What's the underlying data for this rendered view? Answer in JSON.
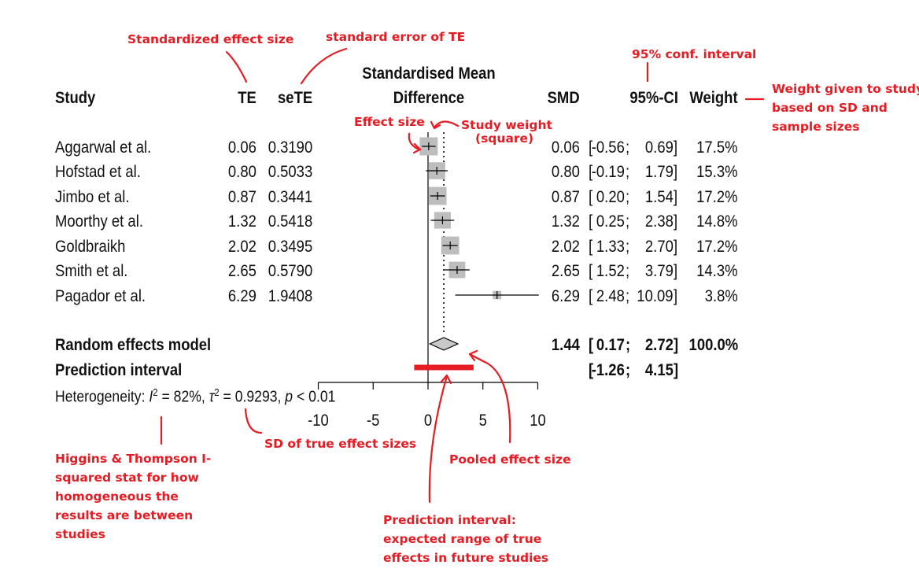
{
  "headers": {
    "study": "Study",
    "te": "TE",
    "sete": "seTE",
    "plot_line1": "Standardised Mean",
    "plot_line2": "Difference",
    "smd": "SMD",
    "ci": "95%-CI",
    "weight": "Weight"
  },
  "studies": [
    {
      "name": "Aggarwal et al.",
      "te": "0.06",
      "sete": "0.3190",
      "smd": "0.06",
      "ci_lo": "-0.56",
      "ci_hi": "0.69",
      "weight": "17.5%"
    },
    {
      "name": "Hofstad et al.",
      "te": "0.80",
      "sete": "0.5033",
      "smd": "0.80",
      "ci_lo": "-0.19",
      "ci_hi": "1.79",
      "weight": "15.3%"
    },
    {
      "name": "Jimbo et al.",
      "te": "0.87",
      "sete": "0.3441",
      "smd": "0.87",
      "ci_lo": "0.20",
      "ci_hi": "1.54",
      "weight": "17.2%"
    },
    {
      "name": "Moorthy et al.",
      "te": "1.32",
      "sete": "0.5418",
      "smd": "1.32",
      "ci_lo": "0.25",
      "ci_hi": "2.38",
      "weight": "14.8%"
    },
    {
      "name": "Goldbraikh",
      "te": "2.02",
      "sete": "0.3495",
      "smd": "2.02",
      "ci_lo": "1.33",
      "ci_hi": "2.70",
      "weight": "17.2%"
    },
    {
      "name": "Smith et al.",
      "te": "2.65",
      "sete": "0.5790",
      "smd": "2.65",
      "ci_lo": "1.52",
      "ci_hi": "3.79",
      "weight": "14.3%"
    },
    {
      "name": "Pagador et al.",
      "te": "6.29",
      "sete": "1.9408",
      "smd": "6.29",
      "ci_lo": "2.48",
      "ci_hi": "10.09",
      "weight": "3.8%"
    }
  ],
  "random_effects": {
    "label": "Random effects model",
    "smd": "1.44",
    "ci_lo": "0.17",
    "ci_hi": "2.72",
    "weight": "100.0%"
  },
  "prediction": {
    "label": "Prediction interval",
    "lo": "-1.26",
    "hi": "4.15"
  },
  "heterogeneity": {
    "label": "Heterogeneity: ",
    "i2_sym": "I",
    "i2_sup": "2",
    "i2_val": " = 82%, ",
    "tau_sym": "τ",
    "tau_sup": "2",
    "tau_val": " = 0.9293, ",
    "p_sym": "p",
    "p_val": " < 0.01"
  },
  "colors": {
    "annotation": "#e51c23",
    "square": "#bdbdbd",
    "diamond": "#c8c8c8",
    "prediction_bar": "#e51c23"
  },
  "chart_data": {
    "type": "forest",
    "xlim": [
      -10,
      10
    ],
    "xticks": [
      -10,
      -5,
      0,
      5,
      10
    ],
    "ref_line": 0,
    "pooled_line": 1.44,
    "studies": [
      {
        "name": "Aggarwal et al.",
        "est": 0.06,
        "lo": -0.56,
        "hi": 0.69,
        "weight": 17.5
      },
      {
        "name": "Hofstad et al.",
        "est": 0.8,
        "lo": -0.19,
        "hi": 1.79,
        "weight": 15.3
      },
      {
        "name": "Jimbo et al.",
        "est": 0.87,
        "lo": 0.2,
        "hi": 1.54,
        "weight": 17.2
      },
      {
        "name": "Moorthy et al.",
        "est": 1.32,
        "lo": 0.25,
        "hi": 2.38,
        "weight": 14.8
      },
      {
        "name": "Goldbraikh",
        "est": 2.02,
        "lo": 1.33,
        "hi": 2.7,
        "weight": 17.2
      },
      {
        "name": "Smith et al.",
        "est": 2.65,
        "lo": 1.52,
        "hi": 3.79,
        "weight": 14.3
      },
      {
        "name": "Pagador et al.",
        "est": 6.29,
        "lo": 2.48,
        "hi": 10.09,
        "weight": 3.8
      }
    ],
    "pooled": {
      "est": 1.44,
      "lo": 0.17,
      "hi": 2.72
    },
    "prediction_interval": {
      "lo": -1.26,
      "hi": 4.15
    }
  },
  "annotations": {
    "std_effect_size": "Standardized effect size",
    "std_error": "standard error of TE",
    "conf_interval": "95% conf. interval",
    "weight_given_1": "Weight given to study",
    "weight_given_2": "based on SD and",
    "weight_given_3": "sample sizes",
    "effect_size": "Effect size",
    "study_weight_1": "Study weight",
    "study_weight_2": "(square)",
    "higgins_1": "Higgins & Thompson I-",
    "higgins_2": "squared stat for how",
    "higgins_3": "homogeneous the",
    "higgins_4": "results are between",
    "higgins_5": "studies",
    "sd_true": "SD of true effect sizes",
    "pooled_effect": "Pooled effect size",
    "pi_1": "Prediction interval:",
    "pi_2": "expected range of true",
    "pi_3": "effects in future studies"
  }
}
